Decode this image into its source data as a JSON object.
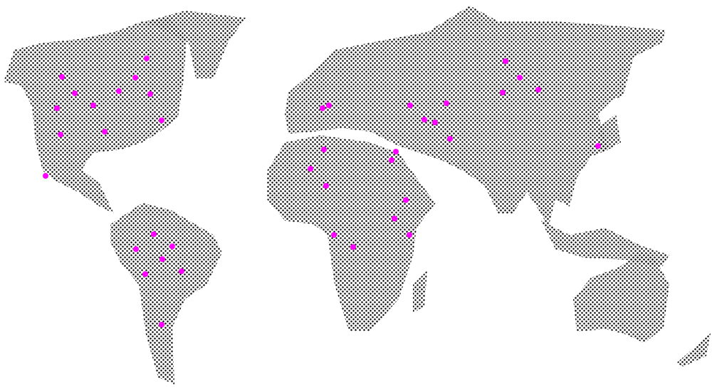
{
  "map": {
    "style": "dotted-halftone-world-map",
    "land_dot_color": "#000000",
    "background_color": "#ffffff",
    "marker_color": "#ff00ff",
    "marker_count": 42
  }
}
